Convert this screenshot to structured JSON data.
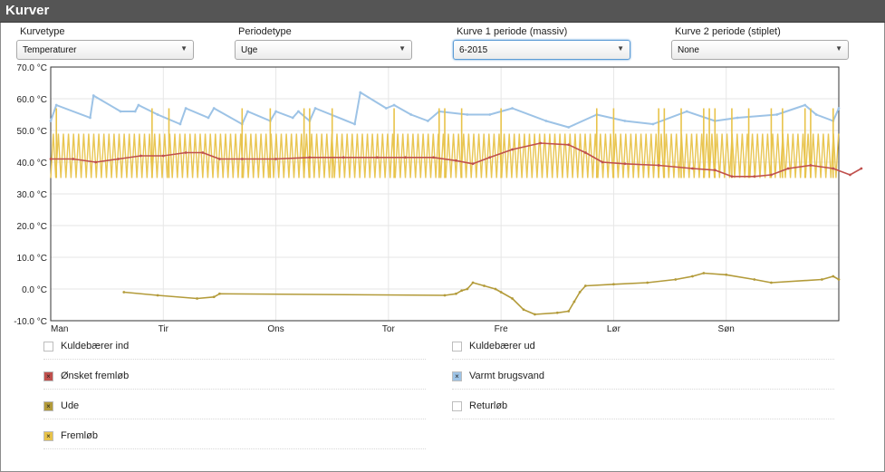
{
  "header": {
    "title": "Kurver"
  },
  "controls": [
    {
      "label": "Kurvetype",
      "value": "Temperaturer",
      "focused": false
    },
    {
      "label": "Periodetype",
      "value": "Uge",
      "focused": false
    },
    {
      "label": "Kurve 1 periode (massiv)",
      "value": "6-2015",
      "focused": true
    },
    {
      "label": "Kurve 2 periode (stiplet)",
      "value": "None",
      "focused": false
    }
  ],
  "legend": [
    {
      "label": "Kuldebærer ind",
      "checked": false,
      "color": "#ffffff"
    },
    {
      "label": "Kuldebærer ud",
      "checked": false,
      "color": "#ffffff"
    },
    {
      "label": "Ønsket fremløb",
      "checked": true,
      "color": "#c0504d"
    },
    {
      "label": "Varmt brugsvand",
      "checked": true,
      "color": "#9dc3e6"
    },
    {
      "label": "Ude",
      "checked": true,
      "color": "#b39b3a"
    },
    {
      "label": "Returløb",
      "checked": false,
      "color": "#ffffff"
    },
    {
      "label": "Fremløb",
      "checked": true,
      "color": "#e8c34a"
    }
  ],
  "chart_data": {
    "type": "line",
    "ylim": [
      -10,
      70
    ],
    "yticks": [
      -10,
      0,
      10,
      20,
      30,
      40,
      50,
      60,
      70
    ],
    "ytick_labels": [
      "-10.0 °C",
      "0.0 °C",
      "10.0 °C",
      "20.0 °C",
      "30.0 °C",
      "40.0 °C",
      "50.0 °C",
      "60.0 °C",
      "70.0 °C"
    ],
    "xlim": [
      0,
      7
    ],
    "x_ticks": [
      0,
      1,
      2,
      3,
      4,
      5,
      6
    ],
    "x_tick_labels": [
      "Man",
      "Tir",
      "Ons",
      "Tor",
      "Fre",
      "Lør",
      "Søn"
    ],
    "grid": true,
    "series": [
      {
        "name": "Varmt brugsvand",
        "color": "#9dc3e6",
        "points": [
          [
            0.0,
            53
          ],
          [
            0.05,
            58
          ],
          [
            0.35,
            54
          ],
          [
            0.38,
            61
          ],
          [
            0.62,
            56
          ],
          [
            0.75,
            56
          ],
          [
            0.78,
            58
          ],
          [
            0.95,
            55
          ],
          [
            1.15,
            52
          ],
          [
            1.2,
            57
          ],
          [
            1.4,
            54
          ],
          [
            1.45,
            57
          ],
          [
            1.7,
            52
          ],
          [
            1.75,
            56
          ],
          [
            1.95,
            53
          ],
          [
            2.0,
            56
          ],
          [
            2.15,
            54
          ],
          [
            2.2,
            56
          ],
          [
            2.3,
            53
          ],
          [
            2.35,
            57
          ],
          [
            2.7,
            52
          ],
          [
            2.75,
            62
          ],
          [
            2.98,
            57
          ],
          [
            3.05,
            58
          ],
          [
            3.2,
            55
          ],
          [
            3.35,
            53
          ],
          [
            3.45,
            56
          ],
          [
            3.7,
            55
          ],
          [
            3.9,
            55
          ],
          [
            4.1,
            57
          ],
          [
            4.4,
            53
          ],
          [
            4.6,
            51
          ],
          [
            4.85,
            55
          ],
          [
            5.1,
            53
          ],
          [
            5.35,
            52
          ],
          [
            5.65,
            56
          ],
          [
            5.9,
            53
          ],
          [
            6.1,
            54
          ],
          [
            6.45,
            55
          ],
          [
            6.7,
            58
          ],
          [
            6.8,
            55
          ],
          [
            6.95,
            53
          ],
          [
            7.0,
            57
          ]
        ]
      },
      {
        "name": "Ønsket fremløb",
        "color": "#c0504d",
        "points": [
          [
            0.0,
            41
          ],
          [
            0.2,
            41
          ],
          [
            0.4,
            40
          ],
          [
            0.6,
            41
          ],
          [
            0.8,
            42
          ],
          [
            1.0,
            42
          ],
          [
            1.2,
            43
          ],
          [
            1.35,
            43
          ],
          [
            1.5,
            41
          ],
          [
            1.7,
            41
          ],
          [
            2.0,
            41
          ],
          [
            2.3,
            41.5
          ],
          [
            2.6,
            41.5
          ],
          [
            2.9,
            41.5
          ],
          [
            3.15,
            41.5
          ],
          [
            3.4,
            41.5
          ],
          [
            3.6,
            40.5
          ],
          [
            3.75,
            39.5
          ],
          [
            3.9,
            41.5
          ],
          [
            4.1,
            44
          ],
          [
            4.35,
            46
          ],
          [
            4.6,
            45.5
          ],
          [
            4.75,
            43
          ],
          [
            4.9,
            40
          ],
          [
            5.1,
            39.5
          ],
          [
            5.4,
            39
          ],
          [
            5.7,
            38
          ],
          [
            5.9,
            37.5
          ],
          [
            6.05,
            35.5
          ],
          [
            6.25,
            35.5
          ],
          [
            6.4,
            36
          ],
          [
            6.55,
            38
          ],
          [
            6.75,
            39
          ],
          [
            6.95,
            38
          ],
          [
            7.1,
            36
          ],
          [
            7.2,
            38
          ]
        ]
      },
      {
        "name": "Ude",
        "color": "#b39b3a",
        "points": [
          [
            0.65,
            -1
          ],
          [
            0.95,
            -2
          ],
          [
            1.3,
            -3
          ],
          [
            1.45,
            -2.5
          ],
          [
            1.5,
            -1.5
          ],
          [
            3.5,
            -2
          ],
          [
            3.6,
            -1.5
          ],
          [
            3.65,
            -0.5
          ],
          [
            3.7,
            0
          ],
          [
            3.75,
            2
          ],
          [
            3.85,
            1
          ],
          [
            3.95,
            0
          ],
          [
            4.0,
            -1
          ],
          [
            4.1,
            -3
          ],
          [
            4.2,
            -6.5
          ],
          [
            4.3,
            -8
          ],
          [
            4.5,
            -7.5
          ],
          [
            4.6,
            -7
          ],
          [
            4.65,
            -4
          ],
          [
            4.7,
            -1
          ],
          [
            4.75,
            1
          ],
          [
            5.0,
            1.5
          ],
          [
            5.3,
            2
          ],
          [
            5.55,
            3
          ],
          [
            5.7,
            4
          ],
          [
            5.8,
            5
          ],
          [
            6.0,
            4.5
          ],
          [
            6.25,
            3
          ],
          [
            6.4,
            2
          ],
          [
            6.85,
            3
          ],
          [
            6.95,
            4
          ],
          [
            7.0,
            3
          ]
        ]
      },
      {
        "name": "Fremløb",
        "color": "#e8c34a",
        "segments": [
          [
            0.0,
            7.0,
            35,
            49
          ]
        ],
        "spikes_at": [
          0.05,
          0.9,
          1.05,
          1.7,
          1.95,
          2.25,
          2.3,
          2.5,
          3.05,
          3.45,
          3.5,
          3.65,
          4.0,
          4.85,
          5.0,
          5.4,
          5.45,
          5.6,
          5.8,
          5.85,
          5.9,
          6.05,
          6.2,
          6.4,
          6.5,
          6.7,
          6.75,
          6.95
        ],
        "spike_value": 57
      }
    ]
  }
}
